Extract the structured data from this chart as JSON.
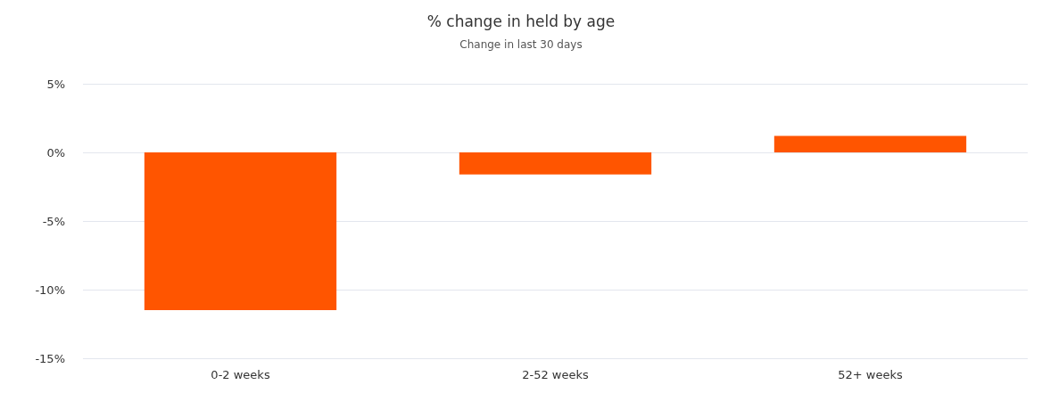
{
  "chart_data": {
    "type": "bar",
    "title": "% change in held by age",
    "subtitle": "Change in last 30 days",
    "categories": [
      "0-2 weeks",
      "2-52 weeks",
      "52+ weeks"
    ],
    "values": [
      -11.5,
      -1.6,
      1.2
    ],
    "color": "#ff5500",
    "ylim": [
      -15,
      5
    ],
    "yticks": [
      {
        "value": -15,
        "label": "-15%"
      },
      {
        "value": -10,
        "label": "-10%"
      },
      {
        "value": -5,
        "label": "-5%"
      },
      {
        "value": 0,
        "label": "0%"
      },
      {
        "value": 5,
        "label": "5%"
      }
    ],
    "grid": "y"
  }
}
